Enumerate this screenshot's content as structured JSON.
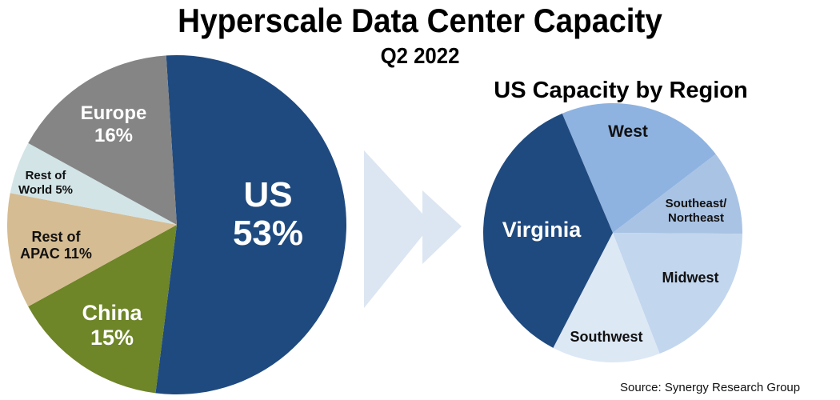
{
  "header": {
    "title": "Hyperscale Data Center Capacity",
    "subtitle": "Q2 2022"
  },
  "right_chart_title": "US Capacity by Region",
  "source": "Source: Synergy Research Group",
  "colors": {
    "us": "#1f4a7f",
    "china": "#6e8528",
    "rest_of_apac": "#d6bc92",
    "rest_of_world": "#d2e4e6",
    "europe": "#858585",
    "arrow": "#dce6f2",
    "virginia": "#1f4a7f",
    "west": "#8fb3e0",
    "southeast_northeast": "#a9c3e4",
    "midwest": "#c2d6ee",
    "southwest": "#dde8f5"
  },
  "labels": {
    "us_name": "US",
    "us_pct": "53%",
    "europe_name": "Europe",
    "europe_pct": "16%",
    "row_line1": "Rest of",
    "row_line2": "World 5%",
    "apac_line1": "Rest of",
    "apac_line2": "APAC 11%",
    "china_name": "China",
    "china_pct": "15%",
    "virginia": "Virginia",
    "west": "West",
    "se_line1": "Southeast/",
    "se_line2": "Northeast",
    "midwest": "Midwest",
    "southwest": "Southwest"
  },
  "chart_data": [
    {
      "type": "pie",
      "title": "Hyperscale Data Center Capacity",
      "subtitle": "Q2 2022",
      "categories": [
        "US",
        "China",
        "Rest of APAC",
        "Rest of World",
        "Europe"
      ],
      "values": [
        53,
        15,
        11,
        5,
        16
      ],
      "unit": "%",
      "colors": [
        "#1f4a7f",
        "#6e8528",
        "#d6bc92",
        "#d2e4e6",
        "#858585"
      ],
      "legend": "none (labels on slices)"
    },
    {
      "type": "pie",
      "title": "US Capacity by Region",
      "categories": [
        "Virginia",
        "West",
        "Southeast/Northeast",
        "Midwest",
        "Southwest"
      ],
      "values": [
        36,
        21,
        10.5,
        19,
        13.5
      ],
      "unit": "% (estimated from slice angles, not labeled)",
      "colors": [
        "#1f4a7f",
        "#8fb3e0",
        "#a9c3e4",
        "#c2d6ee",
        "#dde8f5"
      ],
      "legend": "none (labels on slices)"
    }
  ]
}
